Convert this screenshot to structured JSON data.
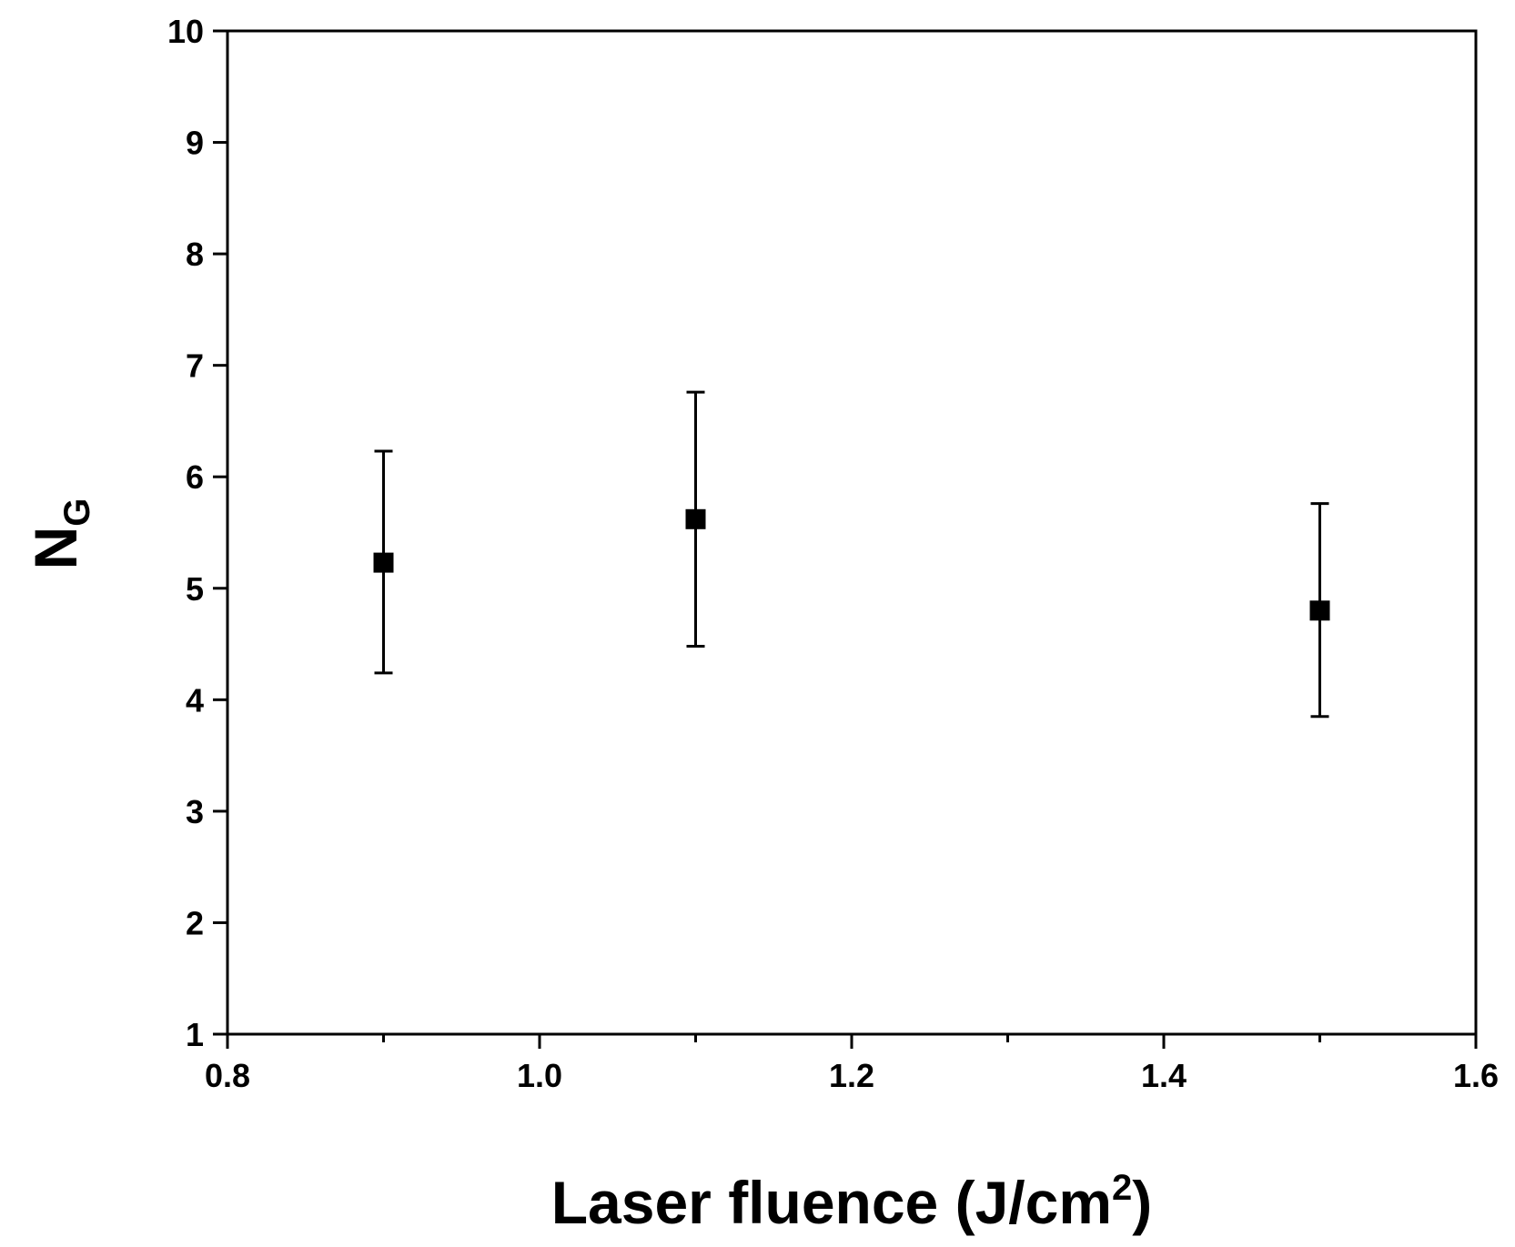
{
  "chart_data": {
    "type": "scatter",
    "title": "",
    "xlabel": "Laser fluence (J/cm",
    "xlabel_sup": "2",
    "xlabel_close": ")",
    "ylabel": "N",
    "ylabel_sub": "G",
    "xlim": [
      0.8,
      1.6
    ],
    "ylim": [
      1,
      10
    ],
    "x_ticks": [
      "0.8",
      "1.0",
      "1.2",
      "1.4",
      "1.6"
    ],
    "y_ticks": [
      "1",
      "2",
      "3",
      "4",
      "5",
      "6",
      "7",
      "8",
      "9",
      "10"
    ],
    "grid": false,
    "legend": "none",
    "marker": "square",
    "color": "#000000",
    "series": [
      {
        "points": [
          {
            "x": 0.9,
            "y": 5.23,
            "err_low": 4.24,
            "err_high": 6.23
          },
          {
            "x": 1.1,
            "y": 5.62,
            "err_low": 4.48,
            "err_high": 6.76
          },
          {
            "x": 1.5,
            "y": 4.8,
            "err_low": 3.85,
            "err_high": 5.76
          }
        ]
      }
    ]
  }
}
